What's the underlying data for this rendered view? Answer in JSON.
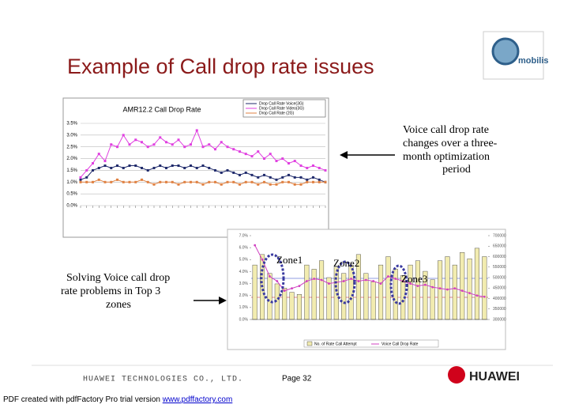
{
  "slide": {
    "title": "Example of Call drop rate issues",
    "logo_text": "mobilis",
    "right_note": [
      "Voice call drop rate",
      "changes over a three-",
      "month optimization",
      "period"
    ],
    "left_note": [
      "Solving Voice call drop",
      "rate problems in Top 3",
      "zones"
    ],
    "footer_company": "HUAWEI TECHNOLOGIES CO., LTD.",
    "footer_page": "Page 32",
    "footer_logo": "HUAWEI",
    "pdf_note": "PDF created with pdfFactory Pro trial version ",
    "pdf_link": "www.pdffactory.com"
  },
  "chart_data": [
    {
      "type": "line",
      "title": "AMR12.2 Call Drop Rate",
      "ylim": [
        0,
        3.5
      ],
      "yticks": [
        {
          "value": 0,
          "label": "0.0%"
        },
        {
          "value": 0.5,
          "label": "0.5%"
        },
        {
          "value": 1,
          "label": "1.0%"
        },
        {
          "value": 1.5,
          "label": "1.5%"
        },
        {
          "value": 2,
          "label": "2.0%"
        },
        {
          "value": 2.5,
          "label": "2.5%"
        },
        {
          "value": 3,
          "label": "3.0%"
        },
        {
          "value": 3.5,
          "label": "3.5%"
        }
      ],
      "grid": true,
      "series": [
        {
          "name": "Drop Call Rate Voice(3G)",
          "color": "#1f2a6b",
          "values": [
            1.1,
            1.2,
            1.5,
            1.6,
            1.7,
            1.6,
            1.7,
            1.6,
            1.7,
            1.7,
            1.6,
            1.5,
            1.6,
            1.7,
            1.6,
            1.7,
            1.7,
            1.6,
            1.7,
            1.6,
            1.7,
            1.6,
            1.5,
            1.4,
            1.5,
            1.4,
            1.3,
            1.4,
            1.3,
            1.2,
            1.3,
            1.2,
            1.1,
            1.2,
            1.3,
            1.2,
            1.2,
            1.1,
            1.2,
            1.1,
            1.0
          ]
        },
        {
          "name": "Drop Call Rate Video(3G)",
          "color": "#e040e0",
          "values": [
            1.2,
            1.5,
            1.8,
            2.2,
            1.9,
            2.6,
            2.5,
            3.0,
            2.6,
            2.8,
            2.7,
            2.5,
            2.6,
            2.9,
            2.7,
            2.6,
            2.8,
            2.5,
            2.6,
            3.2,
            2.5,
            2.6,
            2.4,
            2.7,
            2.5,
            2.4,
            2.3,
            2.2,
            2.1,
            2.3,
            2.0,
            2.2,
            1.9,
            2.0,
            1.8,
            1.9,
            1.7,
            1.6,
            1.7,
            1.6,
            1.5
          ]
        },
        {
          "name": "Drop Call Rate (2G)",
          "color": "#e08040",
          "values": [
            1.0,
            1.0,
            1.0,
            1.1,
            1.0,
            1.0,
            1.1,
            1.0,
            1.0,
            1.0,
            1.1,
            1.0,
            0.9,
            1.0,
            1.0,
            1.0,
            0.9,
            1.0,
            1.0,
            1.0,
            0.9,
            1.0,
            1.0,
            0.9,
            1.0,
            1.0,
            0.9,
            1.0,
            1.0,
            0.9,
            1.0,
            0.9,
            0.9,
            1.0,
            1.0,
            0.9,
            0.9,
            1.0,
            1.0,
            1.0,
            1.0
          ]
        }
      ]
    },
    {
      "type": "bar-line",
      "annotations": [
        "Zone1",
        "Zone2",
        "Zone3"
      ],
      "ylim": [
        0,
        7
      ],
      "yticks": [
        {
          "value": 0,
          "label": "0.0%"
        },
        {
          "value": 1,
          "label": "1.0%"
        },
        {
          "value": 2,
          "label": "2.0%"
        },
        {
          "value": 3,
          "label": "3.0%"
        },
        {
          "value": 4,
          "label": "4.0%"
        },
        {
          "value": 5,
          "label": "5.0%"
        },
        {
          "value": 6,
          "label": "6.0%"
        },
        {
          "value": 7,
          "label": "7.0%"
        }
      ],
      "y2lim": [
        300000,
        700000
      ],
      "y2ticks": [
        300000,
        350000,
        400000,
        450000,
        500000,
        550000,
        600000,
        650000,
        700000
      ],
      "series": [
        {
          "name": "No. of Rate Call Attempt",
          "color": "#f2ecb0",
          "axis": "y2",
          "values": [
            560000,
            610000,
            520000,
            470000,
            450000,
            430000,
            420000,
            560000,
            540000,
            580000,
            500000,
            550000,
            520000,
            560000,
            610000,
            520000,
            480000,
            560000,
            600000,
            540000,
            510000,
            560000,
            580000,
            530000,
            490000,
            580000,
            600000,
            560000,
            620000,
            590000,
            640000,
            600000
          ]
        },
        {
          "name": "Voice Call Drop Rate",
          "color": "#d040c0",
          "values": [
            6.2,
            5.0,
            3.6,
            3.2,
            2.4,
            2.6,
            2.8,
            3.2,
            3.4,
            3.3,
            3.0,
            3.1,
            3.2,
            3.4,
            3.2,
            3.3,
            3.2,
            3.0,
            3.6,
            3.4,
            3.2,
            3.0,
            2.8,
            2.9,
            2.7,
            2.6,
            2.5,
            2.6,
            2.4,
            2.2,
            2.0,
            1.9
          ]
        }
      ]
    }
  ]
}
